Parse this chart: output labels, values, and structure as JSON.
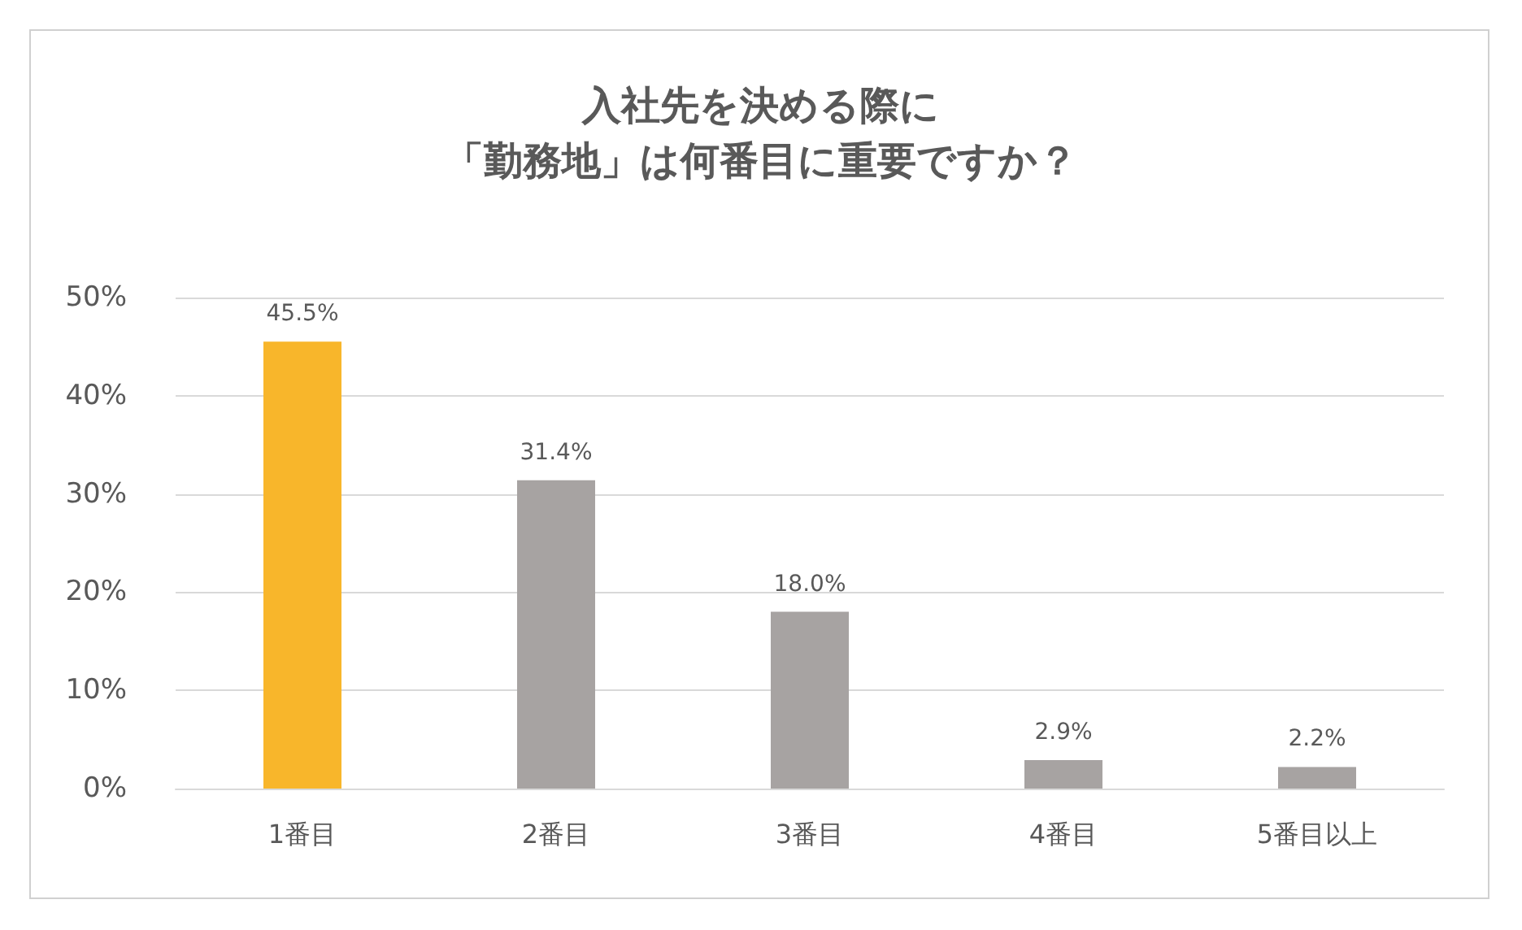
{
  "chart_data": {
    "type": "bar",
    "title": "入社先を決める際に",
    "subtitle": "「勤務地」は何番目に重要ですか？",
    "categories": [
      "1番目",
      "2番目",
      "3番目",
      "4番目",
      "5番目以上"
    ],
    "values": [
      45.5,
      31.4,
      18.0,
      2.9,
      2.2
    ],
    "colors": [
      "#f8b62b",
      "#a7a3a2",
      "#a7a3a2",
      "#a7a3a2",
      "#a7a3a2"
    ],
    "value_labels": [
      "45.5%",
      "31.4%",
      "18.0%",
      "2.9%",
      "2.2%"
    ],
    "ylim": [
      0,
      50
    ],
    "yticks": [
      {
        "value": 0,
        "label": "0%"
      },
      {
        "value": 10,
        "label": "10%"
      },
      {
        "value": 20,
        "label": "20%"
      },
      {
        "value": 30,
        "label": "30%"
      },
      {
        "value": 40,
        "label": "40%"
      },
      {
        "value": 50,
        "label": "50%"
      }
    ],
    "grid": "y"
  }
}
